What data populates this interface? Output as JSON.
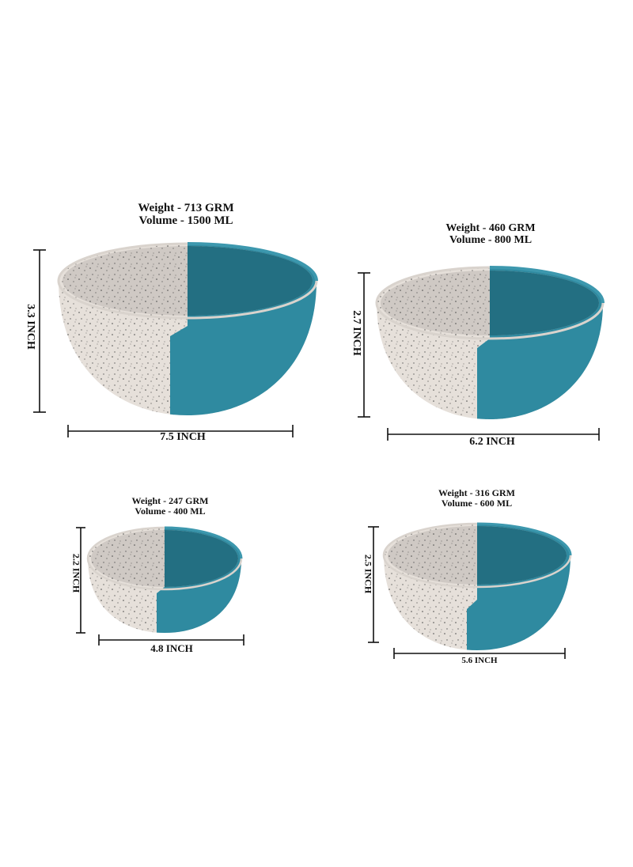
{
  "colors": {
    "teal": "#2f8aa0",
    "teal_dark": "#236f82",
    "speckled_white": "#e6e0da",
    "speckled_inner": "#cfc9c4",
    "speckle": "#4a4a4a",
    "line": "#111111"
  },
  "bowls": [
    {
      "weight": "Weight -  713 GRM",
      "volume": "Volume - 1500 ML",
      "height": "3.3 INCH",
      "width": "7.5 INCH"
    },
    {
      "weight": "Weight - 460 GRM",
      "volume": "Volume - 800 ML",
      "height": "2.7 INCH",
      "width": "6.2 INCH"
    },
    {
      "weight": "Weight - 247 GRM",
      "volume": "Volume - 400 ML",
      "height": "2.2 INCH",
      "width": "4.8 INCH"
    },
    {
      "weight": "Weight - 316 GRM",
      "volume": "Volume - 600 ML",
      "height": "2.5 INCH",
      "width": "5.6 INCH"
    }
  ]
}
